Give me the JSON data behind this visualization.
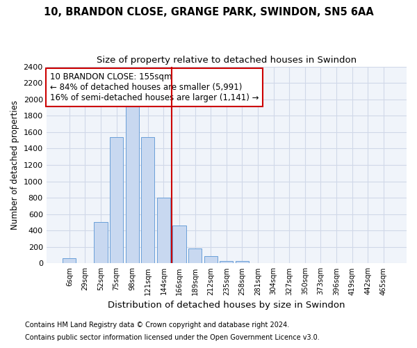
{
  "title1": "10, BRANDON CLOSE, GRANGE PARK, SWINDON, SN5 6AA",
  "title2": "Size of property relative to detached houses in Swindon",
  "xlabel": "Distribution of detached houses by size in Swindon",
  "ylabel": "Number of detached properties",
  "categories": [
    "6sqm",
    "29sqm",
    "52sqm",
    "75sqm",
    "98sqm",
    "121sqm",
    "144sqm",
    "166sqm",
    "189sqm",
    "212sqm",
    "235sqm",
    "258sqm",
    "281sqm",
    "304sqm",
    "327sqm",
    "350sqm",
    "373sqm",
    "396sqm",
    "419sqm",
    "442sqm",
    "465sqm"
  ],
  "values": [
    60,
    0,
    500,
    1540,
    1920,
    1540,
    800,
    460,
    180,
    90,
    30,
    25,
    0,
    0,
    0,
    0,
    0,
    0,
    0,
    0,
    0
  ],
  "bar_color": "#c8d8f0",
  "bar_edge_color": "#6a9fd8",
  "vline_x_index": 6.5,
  "vline_color": "#cc0000",
  "annotation_line1": "10 BRANDON CLOSE: 155sqm",
  "annotation_line2": "← 84% of detached houses are smaller (5,991)",
  "annotation_line3": "16% of semi-detached houses are larger (1,141) →",
  "annotation_box_color": "#cc0000",
  "ylim": [
    0,
    2400
  ],
  "yticks": [
    0,
    200,
    400,
    600,
    800,
    1000,
    1200,
    1400,
    1600,
    1800,
    2000,
    2200,
    2400
  ],
  "footnote1": "Contains HM Land Registry data © Crown copyright and database right 2024.",
  "footnote2": "Contains public sector information licensed under the Open Government Licence v3.0.",
  "background_color": "#ffffff",
  "plot_bg_color": "#f0f4fa",
  "grid_color": "#d0d8e8",
  "title1_fontsize": 10.5,
  "title2_fontsize": 9.5,
  "xlabel_fontsize": 9.5,
  "ylabel_fontsize": 8.5
}
